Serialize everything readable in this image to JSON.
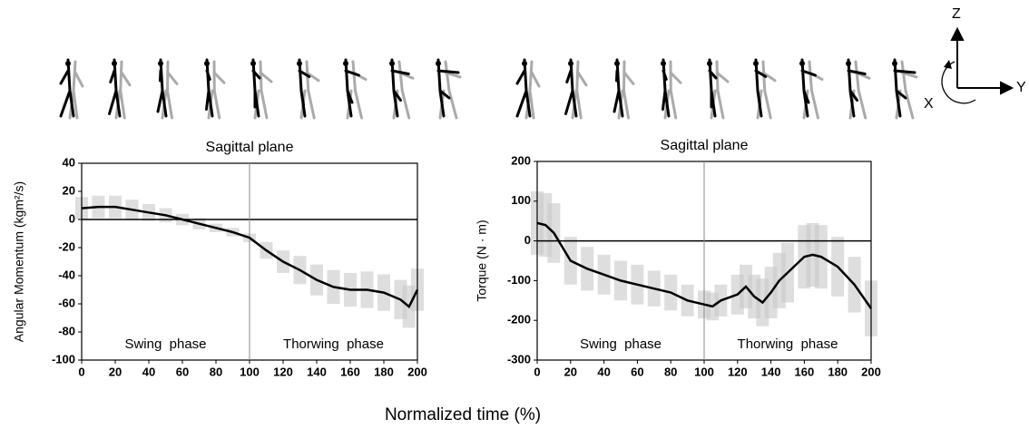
{
  "figure": {
    "x_label": "Normalized time (%)",
    "axis_icon_labels": [
      "Z",
      "X",
      "Y"
    ]
  },
  "chart_data": [
    {
      "type": "line",
      "title": "Sagittal plane",
      "y_label": "Angular Momentum (kgm²/s)",
      "color": "#000000",
      "band_color": "#c8c8c8",
      "x": [
        0,
        10,
        20,
        30,
        40,
        50,
        60,
        70,
        80,
        90,
        100,
        110,
        120,
        130,
        140,
        150,
        160,
        170,
        180,
        190,
        195,
        200
      ],
      "values": [
        8,
        9,
        9,
        7,
        5,
        3,
        0,
        -3,
        -6,
        -9,
        -13,
        -22,
        -30,
        -36,
        -43,
        -48,
        -50,
        -50,
        -52,
        -57,
        -62,
        -50
      ],
      "error": [
        8,
        8,
        8,
        7,
        6,
        5,
        4,
        4,
        3,
        3,
        3,
        6,
        8,
        10,
        11,
        12,
        12,
        13,
        13,
        14,
        15,
        15
      ],
      "xlim": [
        0,
        200
      ],
      "xticks": [
        0,
        20,
        40,
        60,
        80,
        100,
        120,
        140,
        160,
        180,
        200
      ],
      "ylim": [
        -100,
        40
      ],
      "yticks": [
        -100,
        -80,
        -60,
        -40,
        -20,
        0,
        20,
        40
      ],
      "phase_boundary": 100,
      "annotations": [
        "Swing  phase",
        "Thorwing  phase"
      ]
    },
    {
      "type": "line",
      "title": "Sagittal plane",
      "y_label": "Torque (N · m)",
      "color": "#000000",
      "band_color": "#c8c8c8",
      "x": [
        0,
        5,
        10,
        20,
        30,
        40,
        50,
        60,
        70,
        80,
        90,
        100,
        105,
        110,
        120,
        125,
        130,
        135,
        140,
        145,
        150,
        160,
        165,
        170,
        180,
        190,
        200
      ],
      "values": [
        45,
        40,
        20,
        -50,
        -70,
        -85,
        -100,
        -110,
        -120,
        -130,
        -150,
        -160,
        -165,
        -150,
        -135,
        -115,
        -140,
        -155,
        -130,
        -100,
        -80,
        -40,
        -35,
        -40,
        -65,
        -110,
        -170
      ],
      "error": [
        80,
        80,
        75,
        60,
        55,
        50,
        50,
        50,
        45,
        45,
        40,
        35,
        35,
        40,
        50,
        55,
        55,
        60,
        65,
        70,
        75,
        80,
        80,
        80,
        75,
        70,
        70
      ],
      "xlim": [
        0,
        200
      ],
      "xticks": [
        0,
        20,
        40,
        60,
        80,
        100,
        120,
        140,
        160,
        180,
        200
      ],
      "ylim": [
        -300,
        200
      ],
      "yticks": [
        -300,
        -200,
        -100,
        0,
        100,
        200
      ],
      "phase_boundary": 100,
      "annotations": [
        "Swing  phase",
        "Thorwing  phase"
      ]
    }
  ]
}
